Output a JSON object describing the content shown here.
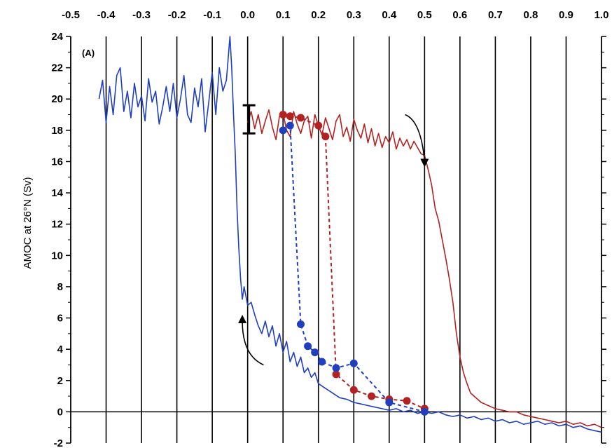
{
  "chart_data": {
    "type": "line",
    "title": "",
    "panel_label": "(A)",
    "xlabel": "",
    "ylabel": "AMOC at 26°N (Sv)",
    "xlim": [
      -0.5,
      1.0
    ],
    "ylim": [
      -2,
      24
    ],
    "x_ticks": [
      "-0.5",
      "-0.4",
      "-0.3",
      "-0.2",
      "-0.1",
      "0.0",
      "0.1",
      "0.2",
      "0.3",
      "0.4",
      "0.5",
      "0.6",
      "0.7",
      "0.8",
      "0.9",
      "1.0"
    ],
    "y_ticks": [
      "24",
      "22",
      "20",
      "18",
      "16",
      "14",
      "12",
      "10",
      "8",
      "6",
      "4",
      "2",
      "0",
      "-2"
    ],
    "x_tick_values": [
      -0.5,
      -0.4,
      -0.3,
      -0.2,
      -0.1,
      0.0,
      0.1,
      0.2,
      0.3,
      0.4,
      0.5,
      0.6,
      0.7,
      0.8,
      0.9,
      1.0
    ],
    "y_tick_values": [
      24,
      22,
      20,
      18,
      16,
      14,
      12,
      10,
      8,
      6,
      4,
      2,
      0,
      -2
    ],
    "vertical_gridlines_at": [
      -0.4,
      -0.3,
      -0.2,
      -0.1,
      0.0,
      0.1,
      0.2,
      0.3,
      0.4,
      0.5,
      0.6,
      0.7,
      0.8,
      0.9
    ],
    "zero_line": 0,
    "series": [
      {
        "role": "red-forward-curve",
        "color": "#b22222",
        "style": "solid",
        "x": [
          0.0,
          0.01,
          0.02,
          0.03,
          0.04,
          0.05,
          0.06,
          0.07,
          0.08,
          0.09,
          0.1,
          0.11,
          0.12,
          0.13,
          0.14,
          0.15,
          0.16,
          0.17,
          0.18,
          0.19,
          0.2,
          0.21,
          0.22,
          0.23,
          0.24,
          0.25,
          0.26,
          0.27,
          0.28,
          0.29,
          0.3,
          0.31,
          0.32,
          0.33,
          0.34,
          0.35,
          0.36,
          0.37,
          0.38,
          0.39,
          0.4,
          0.41,
          0.42,
          0.43,
          0.44,
          0.45,
          0.46,
          0.47,
          0.48,
          0.49,
          0.5,
          0.51,
          0.52,
          0.53,
          0.54,
          0.55,
          0.56,
          0.57,
          0.58,
          0.59,
          0.6,
          0.61,
          0.62,
          0.63,
          0.64,
          0.65,
          0.66,
          0.67,
          0.68,
          0.69,
          0.7,
          0.72,
          0.74,
          0.76,
          0.78,
          0.8,
          0.82,
          0.84,
          0.86,
          0.88,
          0.9,
          0.92,
          0.94,
          0.96,
          0.98,
          1.0
        ],
        "y": [
          18.5,
          19.2,
          18.1,
          19.0,
          17.8,
          18.6,
          19.3,
          18.2,
          17.4,
          18.9,
          19.1,
          18.0,
          17.6,
          19.2,
          18.4,
          17.8,
          18.6,
          18.9,
          17.5,
          19.0,
          18.3,
          17.7,
          18.8,
          18.1,
          17.4,
          18.6,
          19.0,
          17.6,
          18.2,
          17.3,
          18.7,
          18.0,
          17.5,
          18.4,
          17.2,
          18.1,
          17.0,
          17.8,
          16.9,
          17.6,
          17.2,
          17.9,
          16.8,
          17.5,
          17.0,
          17.4,
          16.8,
          17.3,
          16.9,
          16.5,
          16.4,
          15.5,
          14.5,
          13.0,
          12.2,
          11.0,
          9.8,
          8.5,
          7.0,
          5.0,
          3.5,
          2.5,
          1.8,
          1.2,
          1.0,
          0.8,
          0.6,
          0.5,
          0.4,
          0.3,
          0.2,
          0.1,
          0.0,
          0.0,
          -0.2,
          -0.3,
          -0.4,
          -0.5,
          -0.6,
          -0.7,
          -0.6,
          -0.8,
          -0.7,
          -0.9,
          -0.8,
          -1.0
        ]
      },
      {
        "role": "blue-backward-curve",
        "color": "#1f3fbf",
        "style": "solid",
        "x": [
          -0.42,
          -0.41,
          -0.4,
          -0.39,
          -0.38,
          -0.37,
          -0.36,
          -0.35,
          -0.34,
          -0.33,
          -0.32,
          -0.31,
          -0.3,
          -0.29,
          -0.28,
          -0.27,
          -0.26,
          -0.25,
          -0.24,
          -0.23,
          -0.22,
          -0.21,
          -0.2,
          -0.19,
          -0.18,
          -0.17,
          -0.16,
          -0.15,
          -0.14,
          -0.13,
          -0.12,
          -0.11,
          -0.1,
          -0.09,
          -0.08,
          -0.07,
          -0.06,
          -0.05,
          -0.045,
          -0.04,
          -0.035,
          -0.03,
          -0.025,
          -0.02,
          -0.015,
          -0.01,
          0.0,
          0.01,
          0.02,
          0.03,
          0.04,
          0.05,
          0.06,
          0.07,
          0.08,
          0.09,
          0.1,
          0.11,
          0.12,
          0.13,
          0.14,
          0.15,
          0.16,
          0.17,
          0.18,
          0.19,
          0.2,
          0.22,
          0.24,
          0.26,
          0.28,
          0.3,
          0.32,
          0.34,
          0.36,
          0.38,
          0.4,
          0.42,
          0.44,
          0.46,
          0.48,
          0.5,
          0.52,
          0.54,
          0.56,
          0.58,
          0.6,
          0.62,
          0.64,
          0.66,
          0.68,
          0.7,
          0.72,
          0.74,
          0.76,
          0.78,
          0.8,
          0.82,
          0.84,
          0.86,
          0.88,
          0.9,
          0.92,
          0.94,
          0.96,
          0.98,
          1.0
        ],
        "y": [
          20.0,
          21.2,
          18.5,
          20.8,
          19.0,
          21.5,
          22.0,
          19.2,
          20.5,
          18.8,
          21.0,
          19.5,
          20.2,
          18.6,
          21.3,
          19.8,
          20.5,
          18.4,
          19.5,
          20.8,
          19.2,
          21.0,
          18.8,
          20.0,
          21.5,
          19.0,
          18.5,
          20.7,
          19.5,
          21.3,
          17.9,
          19.8,
          21.7,
          19.0,
          22.0,
          20.5,
          21.2,
          24.0,
          22.0,
          19.0,
          16.5,
          13.0,
          10.5,
          8.5,
          7.2,
          8.0,
          6.8,
          7.0,
          6.2,
          5.5,
          5.0,
          5.8,
          4.8,
          5.5,
          4.2,
          5.0,
          3.8,
          4.5,
          3.2,
          3.8,
          2.9,
          3.5,
          2.5,
          2.8,
          2.2,
          2.5,
          1.8,
          1.5,
          1.2,
          0.9,
          0.8,
          0.6,
          0.5,
          0.4,
          0.3,
          0.2,
          0.1,
          0.2,
          0.0,
          0.1,
          -0.1,
          0.0,
          -0.1,
          0.0,
          -0.2,
          -0.3,
          -0.2,
          -0.4,
          -0.3,
          -0.5,
          -0.4,
          -0.6,
          -0.5,
          -0.7,
          -0.6,
          -0.8,
          -0.7,
          -0.6,
          -0.8,
          -0.7,
          -0.9,
          -0.8,
          -1.0,
          -0.9,
          -1.1,
          -1.2,
          -1.3
        ]
      },
      {
        "role": "red-dotted-hysteresis",
        "color": "#b22222",
        "style": "dashed-markers",
        "x": [
          0.1,
          0.12,
          0.15,
          0.2,
          0.22,
          0.25,
          0.3,
          0.35,
          0.4,
          0.45,
          0.5
        ],
        "y": [
          19.0,
          18.9,
          18.8,
          18.3,
          17.6,
          2.4,
          1.4,
          1.0,
          0.8,
          0.7,
          0.2
        ]
      },
      {
        "role": "blue-dotted-hysteresis",
        "color": "#1f3fbf",
        "style": "dashed-markers",
        "x": [
          0.1,
          0.12,
          0.15,
          0.17,
          0.19,
          0.21,
          0.25,
          0.3,
          0.4,
          0.5
        ],
        "y": [
          18.0,
          18.3,
          5.6,
          4.2,
          3.8,
          3.2,
          2.8,
          3.1,
          0.6,
          0.0
        ]
      }
    ],
    "annotations": [
      {
        "type": "error-bar",
        "x": 0.0,
        "y_low": 17.8,
        "y_high": 19.6
      },
      {
        "type": "curved-arrow",
        "direction": "down-right",
        "near": "red curve at x≈0.5"
      },
      {
        "type": "curved-arrow",
        "direction": "up-left",
        "near": "blue curve at x≈0.0"
      }
    ]
  }
}
